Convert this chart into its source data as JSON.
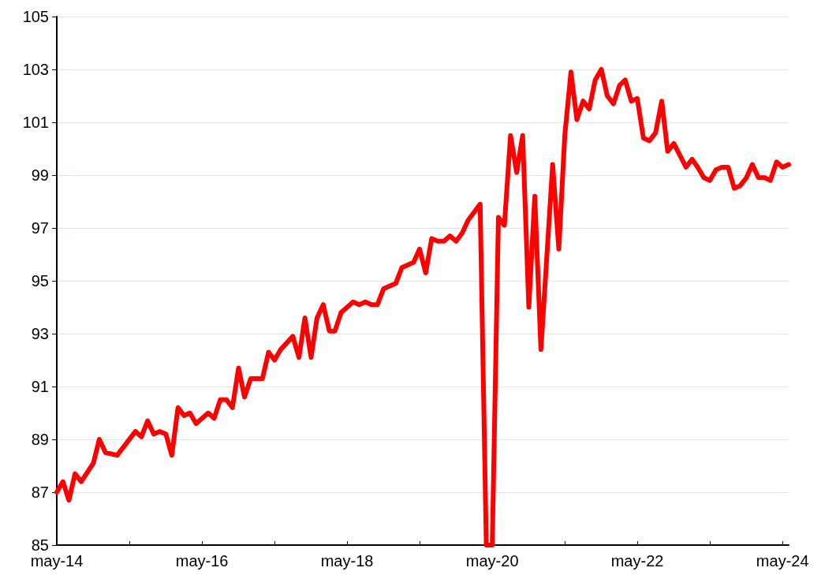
{
  "chart_data": {
    "type": "line",
    "x": [
      "2014-05",
      "2014-06",
      "2014-07",
      "2014-08",
      "2014-09",
      "2014-11",
      "2014-12",
      "2015-01",
      "2015-03",
      "2015-06",
      "2015-07",
      "2015-08",
      "2015-09",
      "2015-10",
      "2015-11",
      "2015-12",
      "2016-01",
      "2016-02",
      "2016-03",
      "2016-04",
      "2016-06",
      "2016-07",
      "2016-08",
      "2016-09",
      "2016-10",
      "2016-11",
      "2016-12",
      "2017-01",
      "2017-03",
      "2017-04",
      "2017-05",
      "2017-06",
      "2017-08",
      "2017-09",
      "2017-10",
      "2017-11",
      "2017-12",
      "2018-01",
      "2018-02",
      "2018-03",
      "2018-04",
      "2018-06",
      "2018-07",
      "2018-08",
      "2018-09",
      "2018-10",
      "2018-11",
      "2019-01",
      "2019-02",
      "2019-04",
      "2019-05",
      "2019-06",
      "2019-07",
      "2019-08",
      "2019-09",
      "2019-10",
      "2019-11",
      "2019-12",
      "2020-01",
      "2020-03",
      "2020-04",
      "2020-05",
      "2020-06",
      "2020-07",
      "2020-08",
      "2020-09",
      "2020-10",
      "2020-11",
      "2020-12",
      "2021-01",
      "2021-03",
      "2021-04",
      "2021-05",
      "2021-06",
      "2021-07",
      "2021-08",
      "2021-09",
      "2021-10",
      "2021-11",
      "2021-12",
      "2022-01",
      "2022-02",
      "2022-03",
      "2022-04",
      "2022-05",
      "2022-06",
      "2022-07",
      "2022-08",
      "2022-09",
      "2022-10",
      "2022-11",
      "2023-01",
      "2023-02",
      "2023-03",
      "2023-04",
      "2023-05",
      "2023-06",
      "2023-07",
      "2023-08",
      "2023-09",
      "2023-10",
      "2023-11",
      "2023-12",
      "2024-01",
      "2024-02",
      "2024-03",
      "2024-04",
      "2024-05",
      "2024-06"
    ],
    "series": [
      {
        "color": "#ff0000",
        "values": [
          87.0,
          87.4,
          86.7,
          87.7,
          87.4,
          88.1,
          89.0,
          88.5,
          88.4,
          89.3,
          89.1,
          89.7,
          89.2,
          89.3,
          89.2,
          88.4,
          90.2,
          89.9,
          90.0,
          89.6,
          90.0,
          89.8,
          90.5,
          90.5,
          90.2,
          91.7,
          90.6,
          91.3,
          91.3,
          92.3,
          92.0,
          92.4,
          92.9,
          92.1,
          93.6,
          92.1,
          93.6,
          94.1,
          93.1,
          93.1,
          93.8,
          94.2,
          94.1,
          94.2,
          94.1,
          94.1,
          94.7,
          94.9,
          95.5,
          95.7,
          96.2,
          95.3,
          96.6,
          96.5,
          96.5,
          96.7,
          96.5,
          96.8,
          97.3,
          97.9,
          85,
          85,
          97.4,
          97.1,
          100.5,
          99.1,
          100.5,
          94.0,
          98.2,
          92.4,
          99.4,
          96.2,
          100.5,
          102.9,
          101.1,
          101.8,
          101.5,
          102.6,
          103.0,
          102.0,
          101.7,
          102.4,
          102.6,
          101.8,
          101.9,
          100.4,
          100.3,
          100.6,
          101.8,
          99.9,
          100.2,
          99.3,
          99.6,
          99.3,
          98.9,
          98.8,
          99.2,
          99.3,
          99.3,
          98.5,
          98.6,
          98.9,
          99.4,
          98.9,
          98.9,
          98.8,
          99.5,
          99.3,
          99.4
        ]
      }
    ],
    "xlim": [
      "2014-05",
      "2024-06"
    ],
    "xticks": [
      {
        "value": "2014-05",
        "label": "may-14"
      },
      {
        "value": "2015-05",
        "label": null
      },
      {
        "value": "2016-05",
        "label": "may-16"
      },
      {
        "value": "2017-05",
        "label": null
      },
      {
        "value": "2018-05",
        "label": "may-18"
      },
      {
        "value": "2019-05",
        "label": null
      },
      {
        "value": "2020-05",
        "label": "may-20"
      },
      {
        "value": "2021-05",
        "label": null
      },
      {
        "value": "2022-05",
        "label": "may-22"
      },
      {
        "value": "2023-05",
        "label": null
      },
      {
        "value": "2024-05",
        "label": "may-24"
      }
    ],
    "ylim": [
      85,
      105
    ],
    "yticks": [
      85,
      87,
      89,
      91,
      93,
      95,
      97,
      99,
      101,
      103,
      105
    ],
    "grid": "y",
    "marker": "none",
    "line_style": "solid"
  }
}
